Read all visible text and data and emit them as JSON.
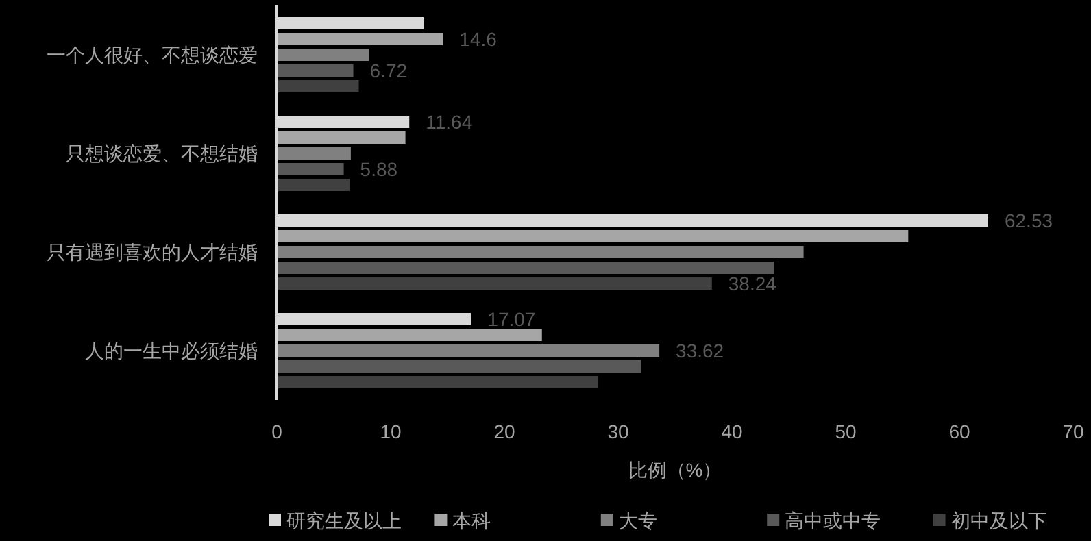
{
  "chart_data": {
    "type": "bar",
    "orientation": "horizontal",
    "categories": [
      "一个人很好、不想谈恋爱",
      "只想谈恋爱、不想结婚",
      "只有遇到喜欢的人才结婚",
      "人的一生中必须结婚"
    ],
    "series": [
      {
        "name": "研究生及以上",
        "color": "#d9d9d9",
        "values": [
          12.9,
          11.64,
          62.53,
          17.07
        ],
        "value_labels": [
          null,
          "11.64",
          "62.53",
          "17.07"
        ]
      },
      {
        "name": "本科",
        "color": "#a6a6a6",
        "values": [
          14.6,
          11.3,
          55.5,
          23.3
        ],
        "value_labels": [
          "14.6",
          null,
          null,
          null
        ]
      },
      {
        "name": "大专",
        "color": "#808080",
        "values": [
          8.1,
          6.5,
          46.3,
          33.62
        ],
        "value_labels": [
          null,
          null,
          null,
          "33.62"
        ]
      },
      {
        "name": "高中或中专",
        "color": "#595959",
        "values": [
          6.72,
          5.88,
          43.7,
          32.0
        ],
        "value_labels": [
          "6.72",
          "5.88",
          null,
          null
        ]
      },
      {
        "name": "初中及以下",
        "color": "#404040",
        "values": [
          7.2,
          6.4,
          38.24,
          28.2
        ],
        "value_labels": [
          null,
          null,
          "38.24",
          null
        ]
      }
    ],
    "xlabel": "比例（%）",
    "xlim": [
      0,
      70
    ],
    "xticks": [
      0,
      10,
      20,
      30,
      40,
      50,
      60,
      70
    ],
    "grid": false,
    "legend": "bottom"
  }
}
